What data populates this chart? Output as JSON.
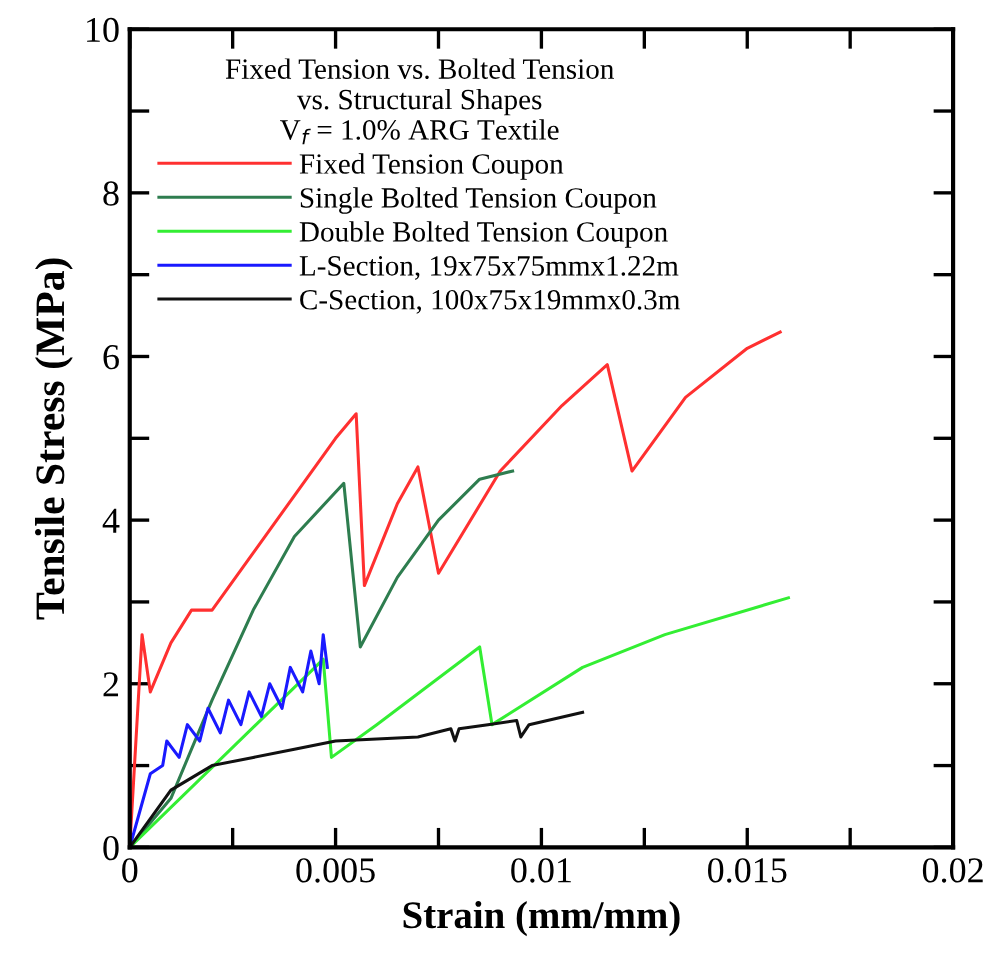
{
  "chart_data": {
    "type": "line",
    "xlabel": "Strain (mm/mm)",
    "ylabel": "Tensile Stress (MPa)",
    "legend_title": "Fixed Tension vs. Bolted Tension\nvs. Structural Shapes\nV$_{f}$ = 1.0% ARG Textile",
    "legend": "top left",
    "grid": false,
    "marker": "none",
    "line_style": "solid",
    "xlim": [
      0,
      0.02
    ],
    "ylim": [
      0,
      10
    ],
    "xticks": [
      0,
      {
        "value": 0.0025,
        "label": null
      },
      0.005,
      {
        "value": 0.0075,
        "label": null
      },
      0.01,
      {
        "value": 0.0125,
        "label": null
      },
      0.015,
      {
        "value": 0.0175,
        "label": null
      },
      0.02
    ],
    "yticks": [
      0,
      {
        "value": 1,
        "label": null
      },
      2,
      {
        "value": 3,
        "label": null
      },
      4,
      {
        "value": 5,
        "label": null
      },
      6,
      {
        "value": 7,
        "label": null
      },
      8,
      {
        "value": 9,
        "label": null
      },
      10
    ],
    "series": [
      {
        "name": "Fixed Tension Coupon",
        "color": "#ff3030",
        "x": [
          0,
          0.0003,
          0.0005,
          0.001,
          0.0015,
          0.002,
          0.003,
          0.004,
          0.005,
          0.0055,
          0.0057,
          0.0065,
          0.007,
          0.0075,
          0.009,
          0.0105,
          0.0116,
          0.0122,
          0.0135,
          0.015,
          0.0158
        ],
        "values": [
          0,
          2.6,
          1.9,
          2.5,
          2.9,
          2.9,
          3.6,
          4.3,
          5.0,
          5.3,
          3.2,
          4.2,
          4.65,
          3.35,
          4.6,
          5.4,
          5.9,
          4.6,
          5.5,
          6.1,
          6.3
        ]
      },
      {
        "name": "Single Bolted Tension Coupon",
        "color": "#2e7d4f",
        "x": [
          0,
          0.001,
          0.002,
          0.003,
          0.004,
          0.0052,
          0.0056,
          0.0065,
          0.0075,
          0.0085,
          0.0093
        ],
        "values": [
          0,
          0.6,
          1.8,
          2.9,
          3.8,
          4.45,
          2.45,
          3.3,
          4.0,
          4.5,
          4.6
        ]
      },
      {
        "name": "Double Bolted Tension Coupon",
        "color": "#33ee33",
        "x": [
          0,
          0.0045,
          0.0047,
          0.0049,
          0.006,
          0.0085,
          0.0088,
          0.011,
          0.013,
          0.016
        ],
        "values": [
          0,
          2.2,
          2.3,
          1.1,
          1.5,
          2.45,
          1.5,
          2.2,
          2.6,
          3.05
        ]
      },
      {
        "name": "L-Section, 19x75x75mmx1.22m",
        "color": "#1a1aff",
        "x": [
          0,
          0.0005,
          0.0008,
          0.0009,
          0.0012,
          0.0014,
          0.0017,
          0.0019,
          0.0022,
          0.0024,
          0.0027,
          0.0029,
          0.0032,
          0.0034,
          0.0037,
          0.0039,
          0.0042,
          0.0044,
          0.0046,
          0.0047,
          0.0048
        ],
        "values": [
          0,
          0.9,
          1.0,
          1.3,
          1.1,
          1.5,
          1.3,
          1.7,
          1.4,
          1.8,
          1.5,
          1.9,
          1.6,
          2.0,
          1.7,
          2.2,
          1.9,
          2.4,
          2.0,
          2.6,
          2.2
        ]
      },
      {
        "name": "C-Section, 100x75x19mmx0.3m",
        "color": "#111111",
        "x": [
          0,
          0.001,
          0.002,
          0.003,
          0.004,
          0.005,
          0.007,
          0.0078,
          0.0079,
          0.008,
          0.0087,
          0.0094,
          0.0095,
          0.0097,
          0.011
        ],
        "values": [
          0,
          0.7,
          1.0,
          1.1,
          1.2,
          1.3,
          1.35,
          1.45,
          1.3,
          1.45,
          1.5,
          1.55,
          1.35,
          1.5,
          1.65
        ]
      }
    ]
  }
}
